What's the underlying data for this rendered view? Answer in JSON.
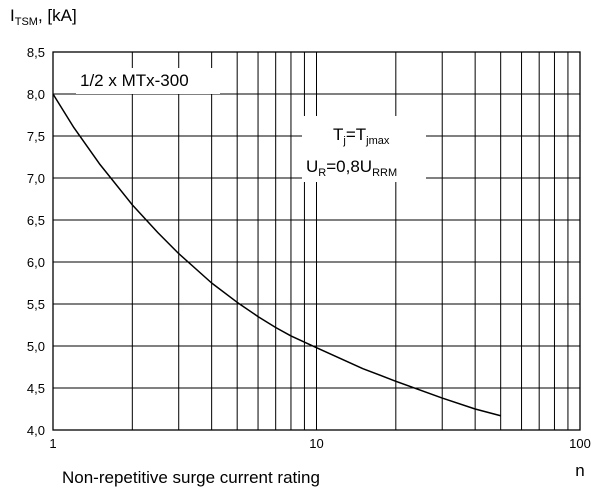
{
  "chart_data": {
    "type": "line",
    "title": "",
    "xlabel": "n",
    "ylabel": {
      "main": "I",
      "sub": "TSM",
      "unit": ", [kA]"
    },
    "xscale": "log",
    "xlim": [
      1,
      100
    ],
    "ylim": [
      4.0,
      8.5
    ],
    "x_ticks": [
      "1",
      "10",
      "100"
    ],
    "y_ticks": [
      "4,0",
      "4,5",
      "5,0",
      "5,5",
      "6,0",
      "6,5",
      "7,0",
      "7,5",
      "8,0",
      "8,5"
    ],
    "grid": true,
    "series": [
      {
        "x": [
          1,
          1.2,
          1.5,
          2,
          2.5,
          3,
          4,
          5,
          6,
          7,
          8,
          10,
          15,
          20,
          30,
          40,
          50
        ],
        "y": [
          8.0,
          7.6,
          7.17,
          6.68,
          6.35,
          6.1,
          5.75,
          5.52,
          5.35,
          5.22,
          5.12,
          4.98,
          4.73,
          4.58,
          4.38,
          4.25,
          4.17
        ]
      }
    ],
    "annotations": {
      "device": "1/2 x MTx-300",
      "condition1": {
        "a": "T",
        "a_sub": "j",
        "eq": "=T",
        "b_sub": "jmax"
      },
      "condition2": {
        "a": "U",
        "a_sub": "R",
        "eq": "=0,8U",
        "b_sub": "RRM"
      }
    },
    "caption": "Non-repetitive surge current rating"
  },
  "colors": {
    "grid": "#000000",
    "line": "#000000",
    "background": "#ffffff"
  }
}
